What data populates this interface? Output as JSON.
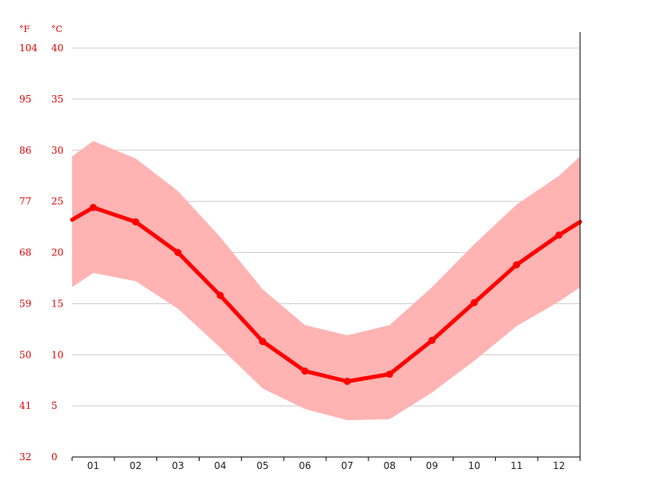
{
  "chart_data": {
    "type": "line",
    "title": "",
    "xlabel": "",
    "ylabel": "",
    "unit_left": "°F",
    "unit_right": "°C",
    "categories": [
      "01",
      "02",
      "03",
      "04",
      "05",
      "06",
      "07",
      "08",
      "09",
      "10",
      "11",
      "12"
    ],
    "yticks_c": [
      "0",
      "5",
      "10",
      "15",
      "20",
      "25",
      "30",
      "35",
      "40"
    ],
    "yticks_f": [
      "32",
      "41",
      "50",
      "59",
      "68",
      "77",
      "86",
      "95",
      "104"
    ],
    "ylim": [
      0,
      40
    ],
    "grid": true,
    "series": [
      {
        "role": "average",
        "values": [
          24.4,
          23.0,
          20.0,
          15.8,
          11.3,
          8.4,
          7.4,
          8.1,
          11.4,
          15.1,
          18.8,
          21.7
        ],
        "color": "#ff0000"
      },
      {
        "role": "max",
        "values": [
          30.9,
          29.2,
          26.0,
          21.5,
          16.4,
          12.9,
          11.9,
          12.9,
          16.6,
          20.8,
          24.7,
          27.5
        ],
        "color": "#ffb3b3"
      },
      {
        "role": "min",
        "values": [
          18.0,
          17.2,
          14.5,
          10.7,
          6.7,
          4.7,
          3.6,
          3.7,
          6.3,
          9.4,
          12.8,
          15.2
        ],
        "color": "#ffb3b3"
      }
    ],
    "edge_values": {
      "average": [
        23.2,
        23.0
      ],
      "max": [
        29.4,
        29.4
      ],
      "min": [
        16.6,
        16.6
      ]
    }
  }
}
